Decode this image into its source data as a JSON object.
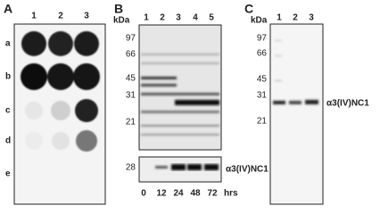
{
  "panel_a": {
    "letter": "A",
    "lanes": [
      "1",
      "2",
      "3"
    ],
    "rows": [
      "a",
      "b",
      "c",
      "d",
      "e"
    ]
  },
  "panel_b": {
    "letter": "B",
    "unit": "kDa",
    "lanes": [
      "1",
      "2",
      "3",
      "4",
      "5"
    ],
    "markers": [
      "97",
      "66",
      "45",
      "31",
      "21"
    ],
    "lower_marker": "28",
    "band_label": "α3(IV)NC1",
    "times": [
      "0",
      "12",
      "24",
      "48",
      "72"
    ],
    "time_unit": "hrs"
  },
  "panel_c": {
    "letter": "C",
    "unit": "kDa",
    "lanes": [
      "1",
      "2",
      "3"
    ],
    "markers": [
      "97",
      "66",
      "45",
      "31",
      "21"
    ],
    "band_label": "α3(IV)NC1"
  }
}
